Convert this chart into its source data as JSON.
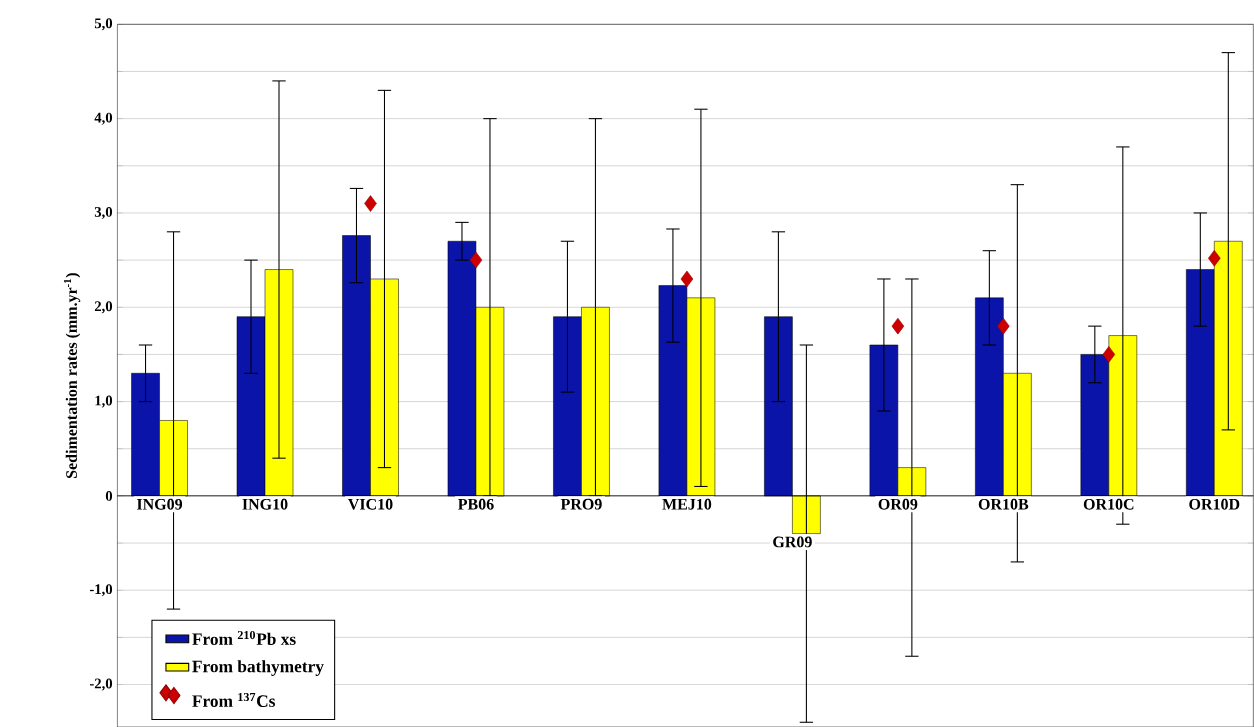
{
  "chart_data": {
    "type": "bar",
    "ylabel": "Sedimentation rates (mm.yr$^{-1}$)",
    "categories": [
      "ING09",
      "ING10",
      "VIC10",
      "PB06",
      "PRO9",
      "MEJ10",
      "GR09",
      "OR09",
      "OR10B",
      "OR10C",
      "OR10D"
    ],
    "series": [
      {
        "name": "From $^{210}$Pb xs",
        "color": "#0a14a8",
        "values": [
          1.3,
          1.9,
          2.76,
          2.7,
          1.9,
          2.23,
          1.9,
          1.6,
          2.1,
          1.5,
          2.4
        ],
        "errors": [
          0.3,
          0.6,
          0.5,
          0.2,
          0.8,
          0.6,
          0.9,
          0.7,
          0.5,
          0.3,
          0.6
        ]
      },
      {
        "name": "From bathymetry",
        "color": "#ffff00",
        "values": [
          0.8,
          2.4,
          2.3,
          2.0,
          2.0,
          2.1,
          -0.4,
          0.3,
          1.3,
          1.7,
          2.7
        ],
        "errors": [
          2,
          2,
          2,
          2,
          2,
          2,
          2,
          2,
          2,
          2,
          2
        ]
      },
      {
        "name": "From $^{137}$Cs",
        "type": "scatter",
        "marker": "diamond",
        "color": "#cc0000",
        "x": [
          "VIC10",
          "PB06",
          "MEJ10",
          "OR09",
          "OR10B",
          "OR10C",
          "OR10D"
        ],
        "values": [
          3.1,
          2.5,
          2.3,
          1.8,
          1.8,
          1.5,
          2.52
        ]
      }
    ],
    "ylim": [
      -2.45,
      5
    ],
    "yticks": [
      {
        "value": -2,
        "label": "-2,0"
      },
      {
        "value": -1.5,
        "label": null
      },
      {
        "value": -1,
        "label": "-1,0"
      },
      {
        "value": -0.5,
        "label": null
      },
      0,
      {
        "value": 0.5,
        "label": null
      },
      {
        "value": 1,
        "label": "1,0"
      },
      {
        "value": 1.5,
        "label": null
      },
      {
        "value": 2,
        "label": "2,0"
      },
      {
        "value": 2.5,
        "label": null
      },
      {
        "value": 3,
        "label": "3,0"
      },
      {
        "value": 3.5,
        "label": null
      },
      {
        "value": 4,
        "label": "4,0"
      },
      {
        "value": 4.5,
        "label": null
      },
      {
        "value": 5,
        "label": "5,0"
      }
    ],
    "grid": "y",
    "legend": "bottom left"
  }
}
